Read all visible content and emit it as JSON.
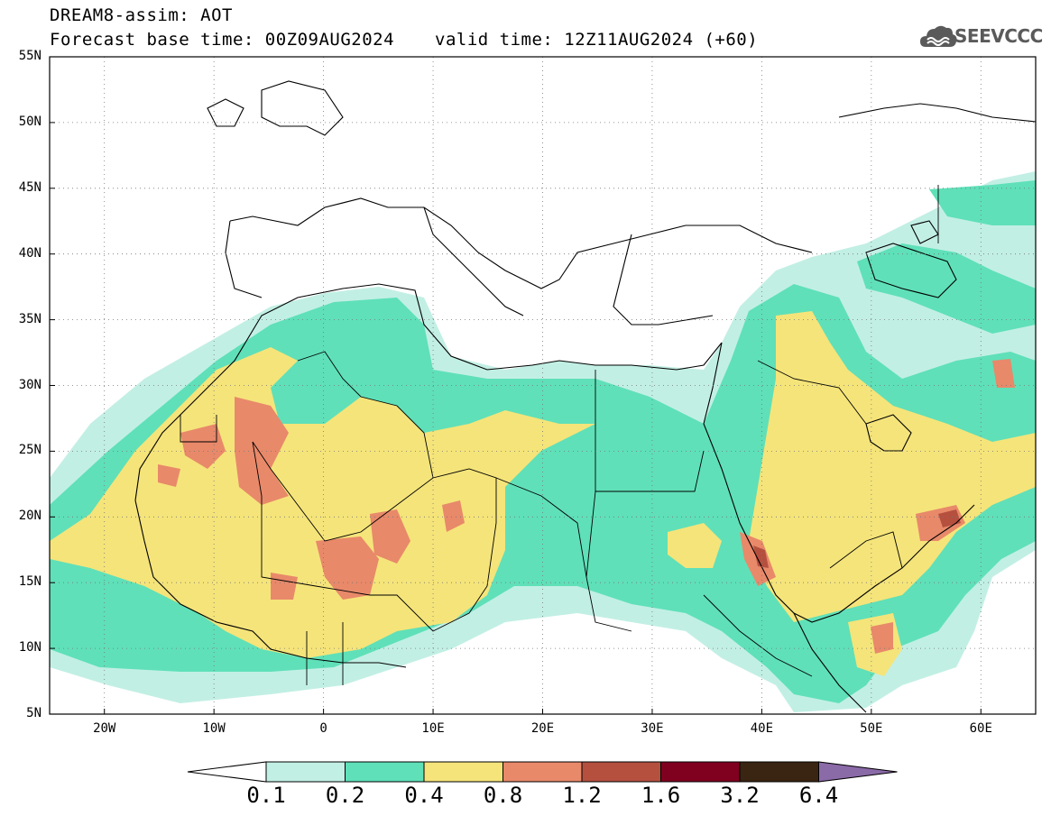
{
  "title": {
    "line1": "DREAM8-assim: AOT",
    "line2": "Forecast base time: 00Z09AUG2024",
    "valid": "valid time: 12Z11AUG2024 (+60)"
  },
  "logo": {
    "text": "SEEVCCC",
    "icon": "cloud-icon"
  },
  "map": {
    "lon_range": [
      -25,
      65
    ],
    "lat_range": [
      5,
      55
    ],
    "grid": "dotted",
    "lat_labels": [
      "55N",
      "50N",
      "45N",
      "40N",
      "35N",
      "30N",
      "25N",
      "20N",
      "15N",
      "10N",
      "5N"
    ],
    "lat_values": [
      55,
      50,
      45,
      40,
      35,
      30,
      25,
      20,
      15,
      10,
      5
    ],
    "lon_labels": [
      "20W",
      "10W",
      "0",
      "10E",
      "20E",
      "30E",
      "40E",
      "50E",
      "60E"
    ],
    "lon_values": [
      -20,
      -10,
      0,
      10,
      20,
      30,
      40,
      50,
      60
    ]
  },
  "colorbar": {
    "labels": [
      "0.1",
      "0.2",
      "0.4",
      "0.8",
      "1.2",
      "1.6",
      "3.2",
      "6.4"
    ],
    "colors": [
      "#c2efe4",
      "#5fe0b8",
      "#f5e47a",
      "#e8896a",
      "#b5503f",
      "#800020",
      "#3a2412",
      "#8b6aa8"
    ]
  },
  "colors": {
    "c01": "#c2efe4",
    "c02": "#5fe0b8",
    "c04": "#f5e47a",
    "c08": "#e8896a",
    "c12": "#b5503f"
  }
}
